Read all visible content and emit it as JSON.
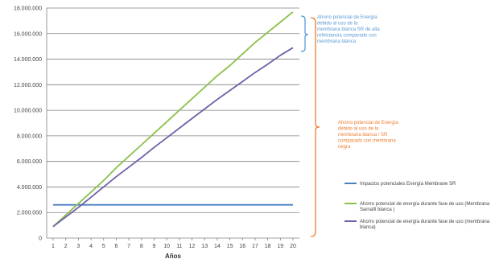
{
  "chart_data": {
    "type": "line",
    "title": "",
    "xlabel": "Años",
    "ylabel": "",
    "x": [
      1,
      2,
      3,
      4,
      5,
      6,
      7,
      8,
      9,
      10,
      11,
      12,
      13,
      14,
      15,
      16,
      17,
      18,
      19,
      20
    ],
    "ylim": [
      0,
      18000000
    ],
    "y_ticks": [
      "0",
      "2.000.000",
      "4.000.000",
      "6.000.000",
      "8.000.000",
      "10.000.000",
      "12.000.000",
      "14.000.000",
      "16.000.000",
      "18.000.000"
    ],
    "y_tick_values": [
      0,
      2000000,
      4000000,
      6000000,
      8000000,
      10000000,
      12000000,
      14000000,
      16000000,
      18000000
    ],
    "x_ticks": [
      "1",
      "2",
      "3",
      "4",
      "5",
      "6",
      "7",
      "8",
      "9",
      "10",
      "11",
      "12",
      "13",
      "14",
      "15",
      "16",
      "17",
      "18",
      "19",
      "20"
    ],
    "grid": "horizontal",
    "legend_position": "right",
    "series": [
      {
        "name": "Impactos potenciales Energía Membrane SR",
        "color": "#4a7fc0",
        "values": [
          2600000,
          2600000,
          2600000,
          2600000,
          2600000,
          2600000,
          2600000,
          2600000,
          2600000,
          2600000,
          2600000,
          2600000,
          2600000,
          2600000,
          2600000,
          2600000,
          2600000,
          2600000,
          2600000,
          2600000
        ]
      },
      {
        "name": "Ahorro potencial de energía durante fase de uso (Membrana Sarnafil blanca )",
        "color": "#8cc04a",
        "values": [
          900000,
          1800000,
          2700000,
          3600000,
          4500000,
          5500000,
          6400000,
          7300000,
          8200000,
          9100000,
          10000000,
          10900000,
          11800000,
          12700000,
          13500000,
          14400000,
          15300000,
          16100000,
          16900000,
          17700000
        ]
      },
      {
        "name": "Ahorro potencial de energía durante fase de uso (membrana blanca)",
        "color": "#7160a8",
        "values": [
          900000,
          1650000,
          2400000,
          3200000,
          4000000,
          4800000,
          5550000,
          6300000,
          7100000,
          7850000,
          8600000,
          9350000,
          10100000,
          10850000,
          11550000,
          12250000,
          12950000,
          13600000,
          14300000,
          14900000
        ]
      }
    ],
    "annotations": [
      {
        "id": "anno-blue",
        "color": "#5b9bd5",
        "lines": [
          "Ahorro potencial de Energía",
          "debido al uso de  la",
          "membrana blanca  SR de alta",
          "refelctancia comparado con",
          "membrana blanca"
        ]
      },
      {
        "id": "anno-orange",
        "color": "#ed7d31",
        "lines": [
          "Ahorro potencial de Energía",
          "debido al uso de  la",
          "membrana blanca / SR",
          "comparado con  membrana",
          "negra"
        ]
      }
    ],
    "gridline_color": "#808080",
    "axis_color": "#808080"
  }
}
